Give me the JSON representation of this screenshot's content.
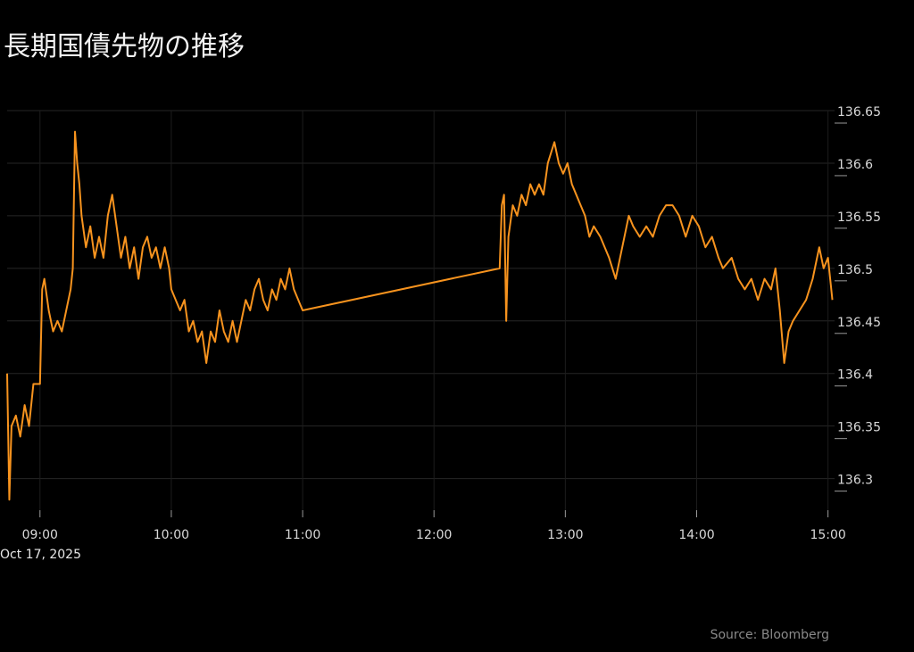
{
  "chart_data": {
    "type": "line",
    "title": "長期国債先物の推移",
    "date_label": "Oct 17, 2025",
    "source": "Source: Bloomberg",
    "xlim": [
      "08:45",
      "15:03"
    ],
    "xticks": [
      "09:00",
      "10:00",
      "11:00",
      "12:00",
      "13:00",
      "14:00",
      "15:00"
    ],
    "ylim": [
      136.27,
      136.65
    ],
    "yticks": [
      136.3,
      136.35,
      136.4,
      136.45,
      136.5,
      136.55,
      136.6,
      136.65
    ],
    "grid": true,
    "series": [
      {
        "name": "長期国債先物",
        "color": "#f7931e",
        "x": [
          "08:45",
          "08:46",
          "08:47",
          "08:49",
          "08:51",
          "08:53",
          "08:55",
          "08:57",
          "09:00",
          "09:01",
          "09:02",
          "09:04",
          "09:06",
          "09:08",
          "09:10",
          "09:12",
          "09:14",
          "09:15",
          "09:16",
          "09:17",
          "09:18",
          "09:19",
          "09:21",
          "09:23",
          "09:25",
          "09:27",
          "09:29",
          "09:31",
          "09:33",
          "09:35",
          "09:37",
          "09:39",
          "09:41",
          "09:43",
          "09:45",
          "09:47",
          "09:49",
          "09:51",
          "09:53",
          "09:55",
          "09:57",
          "09:59",
          "10:00",
          "10:02",
          "10:04",
          "10:06",
          "10:08",
          "10:10",
          "10:12",
          "10:14",
          "10:16",
          "10:18",
          "10:20",
          "10:22",
          "10:24",
          "10:26",
          "10:28",
          "10:30",
          "10:32",
          "10:34",
          "10:36",
          "10:38",
          "10:40",
          "10:42",
          "10:44",
          "10:46",
          "10:48",
          "10:50",
          "10:52",
          "10:54",
          "10:56",
          "10:58",
          "11:00",
          "12:30",
          "12:31",
          "12:32",
          "12:33",
          "12:34",
          "12:36",
          "12:38",
          "12:40",
          "12:42",
          "12:44",
          "12:46",
          "12:48",
          "12:50",
          "12:52",
          "12:55",
          "12:57",
          "12:59",
          "13:01",
          "13:03",
          "13:05",
          "13:07",
          "13:09",
          "13:11",
          "13:13",
          "13:16",
          "13:20",
          "13:23",
          "13:25",
          "13:29",
          "13:31",
          "13:34",
          "13:37",
          "13:40",
          "13:43",
          "13:46",
          "13:49",
          "13:52",
          "13:55",
          "13:58",
          "14:01",
          "14:04",
          "14:07",
          "14:10",
          "14:12",
          "14:16",
          "14:19",
          "14:22",
          "14:25",
          "14:28",
          "14:31",
          "14:34",
          "14:36",
          "14:38",
          "14:40",
          "14:42",
          "14:44",
          "14:47",
          "14:50",
          "14:53",
          "14:56",
          "14:58",
          "15:00",
          "15:02"
        ],
        "values": [
          136.4,
          136.28,
          136.35,
          136.36,
          136.34,
          136.37,
          136.35,
          136.39,
          136.39,
          136.48,
          136.49,
          136.46,
          136.44,
          136.45,
          136.44,
          136.46,
          136.48,
          136.5,
          136.63,
          136.6,
          136.58,
          136.55,
          136.52,
          136.54,
          136.51,
          136.53,
          136.51,
          136.55,
          136.57,
          136.54,
          136.51,
          136.53,
          136.5,
          136.52,
          136.49,
          136.52,
          136.53,
          136.51,
          136.52,
          136.5,
          136.52,
          136.5,
          136.48,
          136.47,
          136.46,
          136.47,
          136.44,
          136.45,
          136.43,
          136.44,
          136.41,
          136.44,
          136.43,
          136.46,
          136.44,
          136.43,
          136.45,
          136.43,
          136.45,
          136.47,
          136.46,
          136.48,
          136.49,
          136.47,
          136.46,
          136.48,
          136.47,
          136.49,
          136.48,
          136.5,
          136.48,
          136.47,
          136.46,
          136.5,
          136.56,
          136.57,
          136.45,
          136.53,
          136.56,
          136.55,
          136.57,
          136.56,
          136.58,
          136.57,
          136.58,
          136.57,
          136.6,
          136.62,
          136.6,
          136.59,
          136.6,
          136.58,
          136.57,
          136.56,
          136.55,
          136.53,
          136.54,
          136.53,
          136.51,
          136.49,
          136.51,
          136.55,
          136.54,
          136.53,
          136.54,
          136.53,
          136.55,
          136.56,
          136.56,
          136.55,
          136.53,
          136.55,
          136.54,
          136.52,
          136.53,
          136.51,
          136.5,
          136.51,
          136.49,
          136.48,
          136.49,
          136.47,
          136.49,
          136.48,
          136.5,
          136.46,
          136.41,
          136.44,
          136.45,
          136.46,
          136.47,
          136.49,
          136.52,
          136.5,
          136.51,
          136.47
        ]
      }
    ]
  }
}
